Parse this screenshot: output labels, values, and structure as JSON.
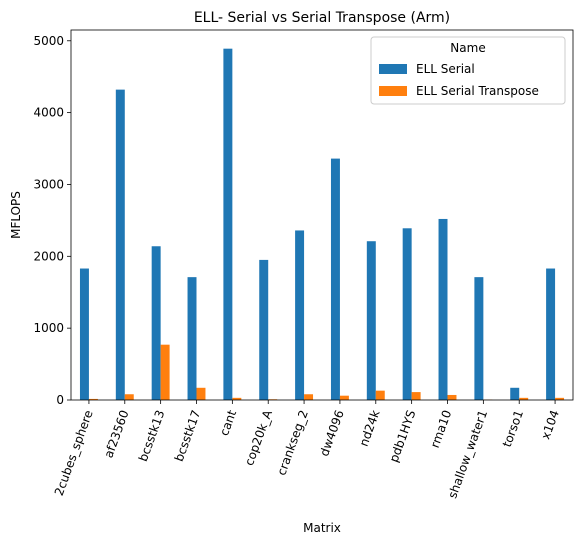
{
  "chart_data": {
    "type": "bar",
    "title": "ELL- Serial vs Serial Transpose (Arm)",
    "xlabel": "Matrix",
    "ylabel": "MFLOPS",
    "ylim": [
      0,
      5150
    ],
    "yticks": [
      0,
      1000,
      2000,
      3000,
      4000,
      5000
    ],
    "categories": [
      "2cubes_sphere",
      "af23560",
      "bcsstk13",
      "bcsstk17",
      "cant",
      "cop20k_A",
      "crankseg_2",
      "dw4096",
      "nd24k",
      "pdb1HYS",
      "rma10",
      "shallow_water1",
      "torso1",
      "x104"
    ],
    "legend": {
      "title": "Name",
      "position": "top-right"
    },
    "series": [
      {
        "name": "ELL Serial",
        "color": "#1f77b4",
        "values": [
          1830,
          4320,
          2140,
          1710,
          4890,
          1950,
          2360,
          3360,
          2210,
          2390,
          2520,
          1710,
          170,
          1830
        ]
      },
      {
        "name": "ELL Serial Transpose",
        "color": "#ff7f0e",
        "values": [
          15,
          80,
          770,
          170,
          30,
          10,
          80,
          60,
          130,
          110,
          70,
          5,
          30,
          30
        ]
      }
    ]
  }
}
